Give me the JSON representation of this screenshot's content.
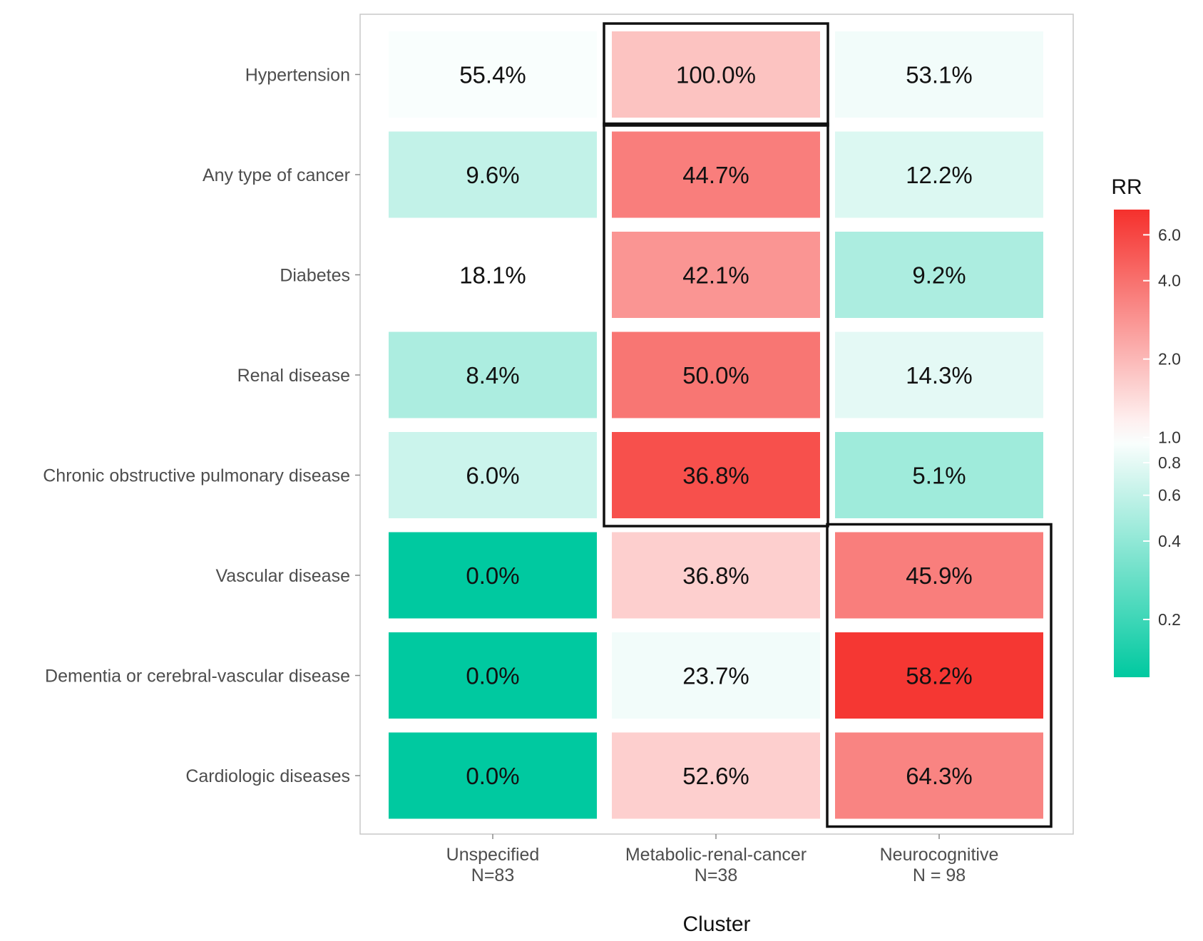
{
  "chart_data": {
    "type": "heatmap",
    "xlabel": "Cluster",
    "ylabel": "",
    "columns": [
      {
        "name": "Unspecified",
        "n_label": "N=83"
      },
      {
        "name": "Metabolic-renal-cancer",
        "n_label": "N=38"
      },
      {
        "name": "Neurocognitive",
        "n_label": "N = 98"
      }
    ],
    "rows": [
      "Hypertension",
      "Any type of cancer",
      "Diabetes",
      "Renal disease",
      "Chronic obstructive pulmonary disease",
      "Vascular disease",
      "Dementia or cerebral-vascular disease",
      "Cardiologic diseases"
    ],
    "labels": [
      [
        "55.4%",
        "100.0%",
        "53.1%"
      ],
      [
        "9.6%",
        "44.7%",
        "12.2%"
      ],
      [
        "18.1%",
        "42.1%",
        "9.2%"
      ],
      [
        "8.4%",
        "50.0%",
        "14.3%"
      ],
      [
        "6.0%",
        "36.8%",
        "5.1%"
      ],
      [
        "0.0%",
        "36.8%",
        "45.9%"
      ],
      [
        "0.0%",
        "23.7%",
        "58.2%"
      ],
      [
        "0.0%",
        "52.6%",
        "64.3%"
      ]
    ],
    "rr_values": [
      [
        0.95,
        1.8,
        0.9
      ],
      [
        0.6,
        3.5,
        0.75
      ],
      [
        1.0,
        2.8,
        0.5
      ],
      [
        0.5,
        3.8,
        0.8
      ],
      [
        0.65,
        5.5,
        0.45
      ],
      [
        0.12,
        1.6,
        3.5
      ],
      [
        0.12,
        0.9,
        7.0
      ],
      [
        0.12,
        1.6,
        3.3
      ]
    ],
    "legend": {
      "title": "RR",
      "ticks": [
        "0.2",
        "0.4",
        "0.6",
        "0.8",
        "1.0",
        "2.0",
        "4.0",
        "6.0"
      ],
      "tick_values": [
        0.2,
        0.4,
        0.6,
        0.8,
        1.0,
        2.0,
        4.0,
        6.0
      ],
      "range": [
        0.12,
        7.5
      ],
      "colors": {
        "low": "#00c9a0",
        "mid": "#ffffff",
        "high": "#f5302c"
      }
    },
    "highlight_boxes": [
      {
        "column": "Metabolic-renal-cancer",
        "rows": [
          "Hypertension"
        ]
      },
      {
        "column": "Metabolic-renal-cancer",
        "rows": [
          "Any type of cancer",
          "Chronic obstructive pulmonary disease"
        ]
      },
      {
        "column": "Neurocognitive",
        "rows": [
          "Vascular disease",
          "Cardiologic diseases"
        ]
      }
    ]
  }
}
